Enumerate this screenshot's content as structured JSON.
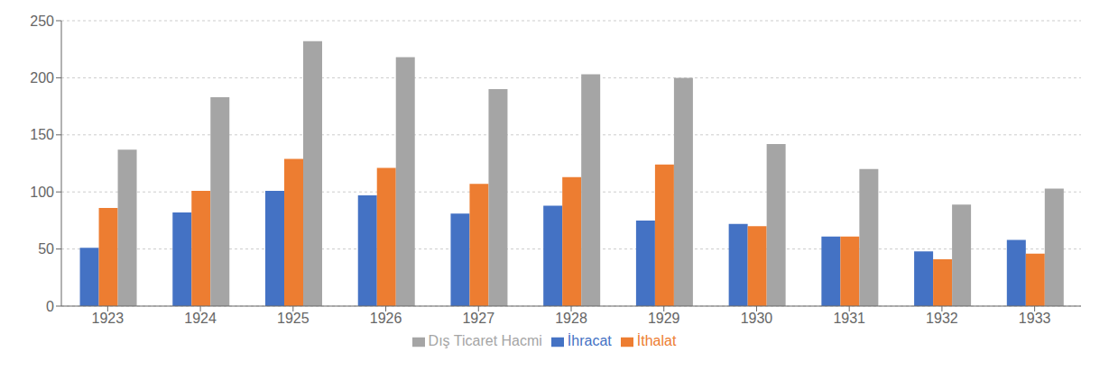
{
  "chart_data": {
    "type": "bar",
    "categories": [
      "1923",
      "1924",
      "1925",
      "1926",
      "1927",
      "1928",
      "1929",
      "1930",
      "1931",
      "1932",
      "1933"
    ],
    "series": [
      {
        "name": "İhracat",
        "color": "#4472c4",
        "values": [
          51,
          82,
          101,
          97,
          81,
          88,
          75,
          72,
          61,
          48,
          58
        ]
      },
      {
        "name": "İthalat",
        "color": "#ed7d31",
        "values": [
          86,
          101,
          129,
          121,
          107,
          113,
          124,
          70,
          61,
          41,
          46
        ]
      },
      {
        "name": "Dış Ticaret Hacmi",
        "color": "#a5a5a5",
        "values": [
          137,
          183,
          232,
          218,
          190,
          203,
          200,
          142,
          120,
          89,
          103
        ]
      }
    ],
    "ylim": [
      0,
      250
    ],
    "yticks": [
      0,
      50,
      100,
      150,
      200,
      250
    ],
    "grid": true,
    "legend": "bottom"
  }
}
